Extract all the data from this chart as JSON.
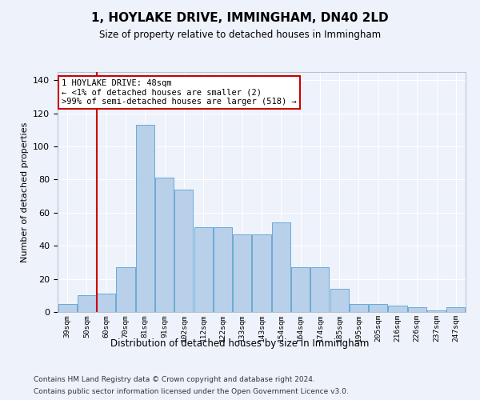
{
  "title": "1, HOYLAKE DRIVE, IMMINGHAM, DN40 2LD",
  "subtitle": "Size of property relative to detached houses in Immingham",
  "xlabel": "Distribution of detached houses by size in Immingham",
  "ylabel": "Number of detached properties",
  "categories": [
    "39sqm",
    "50sqm",
    "60sqm",
    "70sqm",
    "81sqm",
    "91sqm",
    "102sqm",
    "112sqm",
    "122sqm",
    "133sqm",
    "143sqm",
    "154sqm",
    "164sqm",
    "174sqm",
    "185sqm",
    "195sqm",
    "205sqm",
    "216sqm",
    "226sqm",
    "237sqm",
    "247sqm"
  ],
  "values": [
    5,
    10,
    11,
    27,
    113,
    81,
    74,
    51,
    51,
    47,
    47,
    54,
    27,
    27,
    14,
    5,
    5,
    4,
    3,
    1,
    3
  ],
  "bar_color": "#b8d0ea",
  "bar_edge_color": "#6aaad4",
  "red_line_x": 1.5,
  "annotation_line_color": "#cc0000",
  "annotation_box_text": "1 HOYLAKE DRIVE: 48sqm\n← <1% of detached houses are smaller (2)\n>99% of semi-detached houses are larger (518) →",
  "background_color": "#eef2fb",
  "grid_color": "#ffffff",
  "ytick_values": [
    0,
    20,
    40,
    60,
    80,
    100,
    120,
    140
  ],
  "ylim": [
    0,
    145
  ],
  "footer1": "Contains HM Land Registry data © Crown copyright and database right 2024.",
  "footer2": "Contains public sector information licensed under the Open Government Licence v3.0."
}
